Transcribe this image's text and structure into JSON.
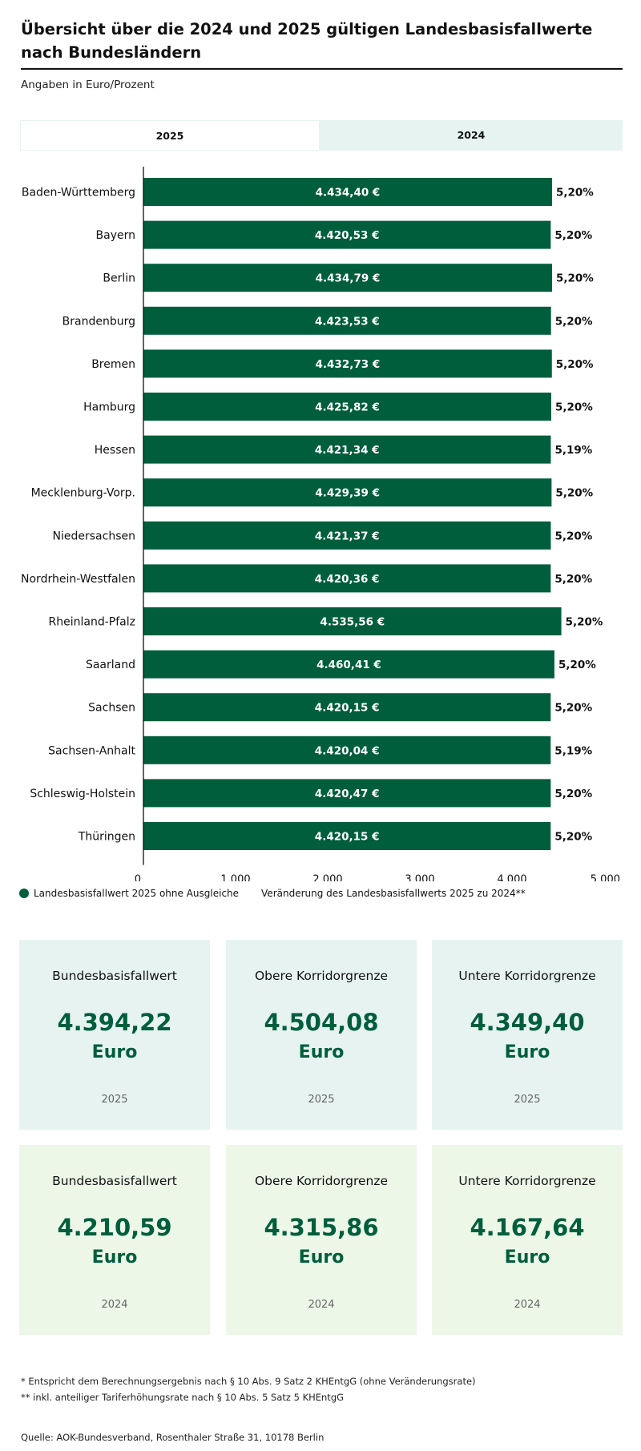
{
  "header": {
    "title": "Übersicht über die 2024 und 2025 gültigen Landesbasisfallwerte nach Bundesländern",
    "subtitle": "Angaben in Euro/Prozent"
  },
  "tabs": [
    {
      "label": "2025",
      "active": true
    },
    {
      "label": "2024",
      "active": false
    }
  ],
  "chart_data": {
    "type": "bar",
    "orientation": "horizontal",
    "categories": [
      "Baden-Württemberg",
      "Bayern",
      "Berlin",
      "Brandenburg",
      "Bremen",
      "Hamburg",
      "Hessen",
      "Mecklenburg-Vorp.",
      "Niedersachsen",
      "Nordrhein-Westfalen",
      "Rheinland-Pfalz",
      "Saarland",
      "Sachsen",
      "Sachsen-Anhalt",
      "Schleswig-Holstein",
      "Thüringen"
    ],
    "values": [
      4434.4,
      4420.53,
      4434.79,
      4423.53,
      4432.73,
      4425.82,
      4421.34,
      4429.39,
      4421.37,
      4420.36,
      4535.56,
      4460.41,
      4420.15,
      4420.04,
      4420.47,
      4420.15
    ],
    "value_labels": [
      "4.434,40 €",
      "4.420,53 €",
      "4.434,79 €",
      "4.423,53 €",
      "4.432,73 €",
      "4.425,82 €",
      "4.421,34 €",
      "4.429,39 €",
      "4.421,37 €",
      "4.420,36 €",
      "4.535,56 €",
      "4.460,41 €",
      "4.420,15 €",
      "4.420,04 €",
      "4.420,47 €",
      "4.420,15 €"
    ],
    "changes": [
      "5,20%",
      "5,20%",
      "5,20%",
      "5,20%",
      "5,20%",
      "5,20%",
      "5,19%",
      "5,20%",
      "5,20%",
      "5,20%",
      "5,20%",
      "5,20%",
      "5,20%",
      "5,19%",
      "5,20%",
      "5,20%"
    ],
    "xlim": [
      0,
      5000
    ],
    "xticks": [
      0,
      1000,
      2000,
      3000,
      4000,
      5000
    ],
    "xtick_labels": [
      "0",
      "1.000",
      "2.000",
      "3.000",
      "4.000",
      "5.000"
    ],
    "bar_color": "#005e3c",
    "grid": false,
    "legend": [
      {
        "label": "Landesbasisfallwert 2025 ohne Ausgleiche",
        "marker": "dot",
        "color": "#005e3c"
      },
      {
        "label": "Veränderung des Landesbasisfallwerts 2025 zu 2024**",
        "marker": "none"
      }
    ]
  },
  "cards_2025": [
    {
      "label": "Bundesbasisfallwert",
      "value": "4.394,22",
      "unit": "Euro",
      "year": "2025"
    },
    {
      "label": "Obere Korridorgrenze",
      "value": "4.504,08",
      "unit": "Euro",
      "year": "2025"
    },
    {
      "label": "Untere Korridorgrenze",
      "value": "4.349,40",
      "unit": "Euro",
      "year": "2025"
    }
  ],
  "cards_2024": [
    {
      "label": "Bundesbasisfallwert",
      "value": "4.210,59",
      "unit": "Euro",
      "year": "2024"
    },
    {
      "label": "Obere Korridorgrenze",
      "value": "4.315,86",
      "unit": "Euro",
      "year": "2024"
    },
    {
      "label": "Untere Korridorgrenze",
      "value": "4.167,64",
      "unit": "Euro",
      "year": "2024"
    }
  ],
  "footnotes": [
    "* Entspricht dem Berechnungsergebnis nach § 10 Abs. 9 Satz 2 KHEntgG (ohne Veränderungsrate)",
    "** inkl. anteiliger Tariferhöhungsrate nach § 10 Abs. 5 Satz 5 KHEntgG"
  ],
  "source": "Quelle: AOK-Bundesverband, Rosenthaler Straße 31, 10178 Berlin",
  "colors": {
    "accent": "#005e3c",
    "card_2025_bg": "#e6f3f1",
    "card_2024_bg": "#ecf7e8",
    "tab_bg": "#e6f3f1"
  }
}
